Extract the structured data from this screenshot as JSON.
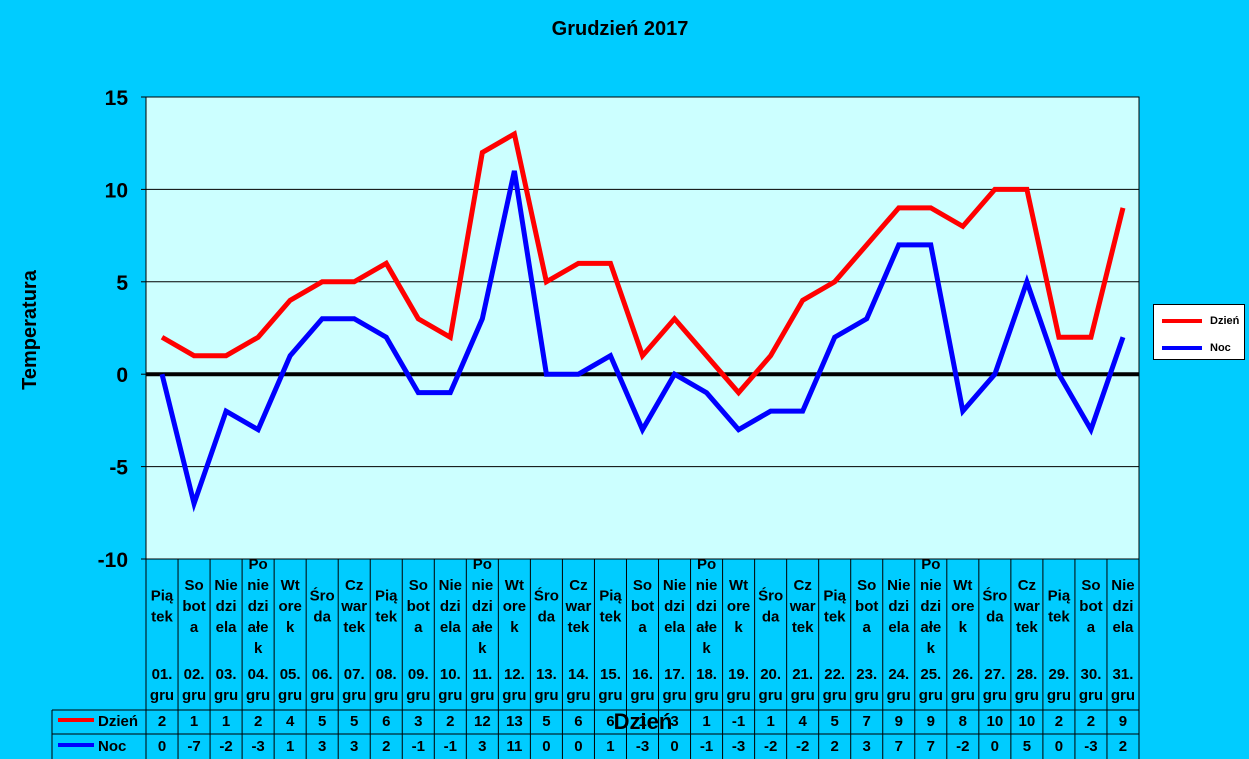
{
  "chart_data": {
    "type": "line",
    "title": "Grudzień 2017",
    "xlabel": "Dzień",
    "ylabel": "Temperatura",
    "ylim": [
      -10,
      15
    ],
    "yticks": [
      "15",
      "10",
      "5",
      "0",
      "-5",
      "-10"
    ],
    "grid": true,
    "legend_position": "right",
    "categories": [
      {
        "day": "Pią tek",
        "date": "01. gru"
      },
      {
        "day": "So bot a",
        "date": "02. gru"
      },
      {
        "day": "Nie dzi ela",
        "date": "03. gru"
      },
      {
        "day": "Po nie dzi ałe k",
        "date": "04. gru"
      },
      {
        "day": "Wt ore k",
        "date": "05. gru"
      },
      {
        "day": "Śro da",
        "date": "06. gru"
      },
      {
        "day": "Cz war tek",
        "date": "07. gru"
      },
      {
        "day": "Pią tek",
        "date": "08. gru"
      },
      {
        "day": "So bot a",
        "date": "09. gru"
      },
      {
        "day": "Nie dzi ela",
        "date": "10. gru"
      },
      {
        "day": "Po nie dzi ałe k",
        "date": "11. gru"
      },
      {
        "day": "Wt ore k",
        "date": "12. gru"
      },
      {
        "day": "Śro da",
        "date": "13. gru"
      },
      {
        "day": "Cz war tek",
        "date": "14. gru"
      },
      {
        "day": "Pią tek",
        "date": "15. gru"
      },
      {
        "day": "So bot a",
        "date": "16. gru"
      },
      {
        "day": "Nie dzi ela",
        "date": "17. gru"
      },
      {
        "day": "Po nie dzi ałe k",
        "date": "18. gru"
      },
      {
        "day": "Wt ore k",
        "date": "19. gru"
      },
      {
        "day": "Śro da",
        "date": "20. gru"
      },
      {
        "day": "Cz war tek",
        "date": "21. gru"
      },
      {
        "day": "Pią tek",
        "date": "22. gru"
      },
      {
        "day": "So bot a",
        "date": "23. gru"
      },
      {
        "day": "Nie dzi ela",
        "date": "24. gru"
      },
      {
        "day": "Po nie dzi ałe k",
        "date": "25. gru"
      },
      {
        "day": "Wt ore k",
        "date": "26. gru"
      },
      {
        "day": "Śro da",
        "date": "27. gru"
      },
      {
        "day": "Cz war tek",
        "date": "28. gru"
      },
      {
        "day": "Pią tek",
        "date": "29. gru"
      },
      {
        "day": "So bot a",
        "date": "30. gru"
      },
      {
        "day": "Nie dzi ela",
        "date": "31. gru"
      }
    ],
    "series": [
      {
        "name": "Dzień",
        "color": "#FF0000",
        "values": [
          2,
          1,
          1,
          2,
          4,
          5,
          5,
          6,
          3,
          2,
          12,
          13,
          5,
          6,
          6,
          1,
          3,
          1,
          -1,
          1,
          4,
          5,
          7,
          9,
          9,
          8,
          10,
          10,
          2,
          2,
          9
        ]
      },
      {
        "name": "Noc",
        "color": "#0000FF",
        "values": [
          0,
          -7,
          -2,
          -3,
          1,
          3,
          3,
          2,
          -1,
          -1,
          3,
          11,
          0,
          0,
          1,
          -3,
          0,
          -1,
          -3,
          -2,
          -2,
          2,
          3,
          7,
          7,
          -2,
          0,
          5,
          0,
          -3,
          2
        ]
      }
    ],
    "colors": {
      "background": "#00CCFF",
      "plot_area": "#CCFFFF",
      "zero_line": "#000000"
    }
  }
}
